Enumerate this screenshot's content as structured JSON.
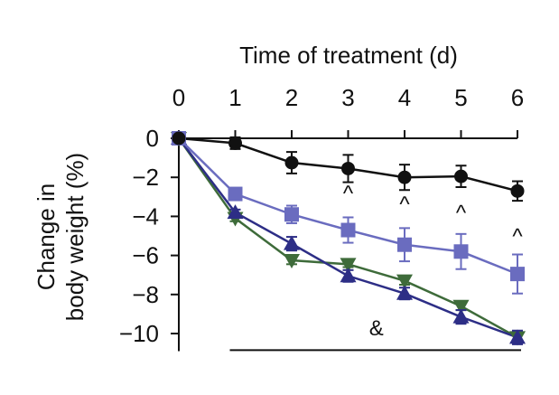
{
  "chart_data": {
    "type": "line",
    "title": "",
    "xlabel": "Time of treatment (d)",
    "ylabel_lines": [
      "Change in",
      "body weight (%)"
    ],
    "x_axis_position": "top",
    "x_ticks": [
      0,
      1,
      2,
      3,
      4,
      5,
      6
    ],
    "y_ticks": [
      0,
      -2,
      -4,
      -6,
      -8,
      -10
    ],
    "y_tick_labels": [
      "0",
      "−2",
      "−4",
      "−6",
      "−8",
      "−10"
    ],
    "xlim": [
      0,
      6
    ],
    "ylim": [
      -10.5,
      0.3
    ],
    "grid": false,
    "legend": "none",
    "x": [
      0,
      1,
      2,
      3,
      4,
      5,
      6
    ],
    "series": [
      {
        "color": "#111111",
        "marker": "circle",
        "values": [
          0,
          -0.25,
          -1.25,
          -1.55,
          -2.0,
          -1.95,
          -2.7
        ],
        "errors": [
          0,
          0.3,
          0.55,
          0.7,
          0.65,
          0.55,
          0.5
        ]
      },
      {
        "color": "#6a6cbf",
        "marker": "square",
        "values": [
          0,
          -2.85,
          -3.9,
          -4.7,
          -5.45,
          -5.8,
          -6.95
        ],
        "errors": [
          0,
          0.3,
          0.45,
          0.65,
          0.85,
          0.9,
          1.0
        ]
      },
      {
        "color": "#3e6b3a",
        "marker": "triangle-down",
        "values": [
          0,
          -4.1,
          -6.25,
          -6.45,
          -7.3,
          -8.6,
          -10.2
        ],
        "errors": [
          0,
          0.15,
          0.2,
          0.15,
          0.2,
          0.2,
          0.25
        ]
      },
      {
        "color": "#2d2e86",
        "marker": "triangle-up",
        "values": [
          0,
          -3.8,
          -5.4,
          -7.05,
          -7.95,
          -9.15,
          -10.2
        ],
        "errors": [
          0,
          0.15,
          0.35,
          0.3,
          0.3,
          0.35,
          0.35
        ]
      }
    ],
    "annotations": [
      {
        "text": "^",
        "x": 3,
        "y": -3.2
      },
      {
        "text": "^",
        "x": 4,
        "y": -3.75
      },
      {
        "text": "^",
        "x": 5,
        "y": -4.2
      },
      {
        "text": "^",
        "x": 6,
        "y": -5.4
      },
      {
        "text": "&",
        "x": 3.5,
        "y": -10.1
      }
    ],
    "bracket": {
      "from": 1,
      "to": 6,
      "y": -10.85
    }
  }
}
